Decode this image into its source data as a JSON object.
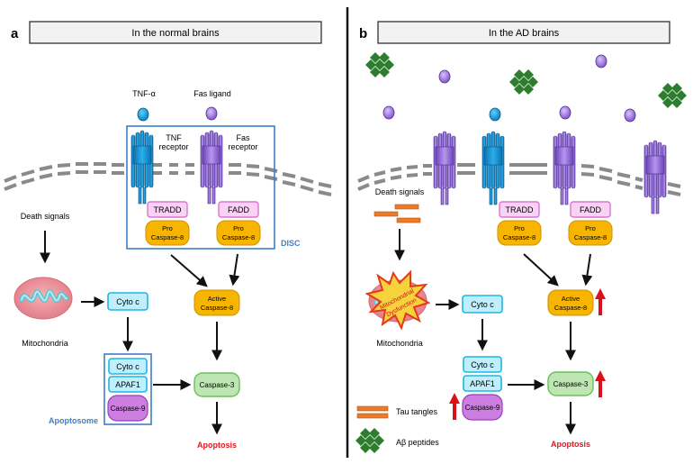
{
  "panel_a": {
    "letter": "a",
    "title": "In the normal brains",
    "tnf_alpha": "TNF-α",
    "fas_ligand": "Fas ligand",
    "tnf_receptor_1": "TNF",
    "tnf_receptor_2": "receptor",
    "fas_receptor_1": "Fas",
    "fas_receptor_2": "receptor",
    "tradd": "TRADD",
    "fadd": "FADD",
    "pro_caspase_1": "Pro",
    "pro_caspase_2": "Caspase-8",
    "disc": "DISC",
    "death_signals": "Death signals",
    "mitochondria": "Mitochondria",
    "cyto_c": "Cyto c",
    "apaf1": "APAF1",
    "caspase9": "Caspase-9",
    "apoptosome": "Apoptosome",
    "active_1": "Active",
    "active_2": "Caspase-8",
    "caspase3": "Caspase-3",
    "apoptosis": "Apoptosis"
  },
  "panel_b": {
    "letter": "b",
    "title": "In the AD brains",
    "death_signals": "Death signals",
    "tradd": "TRADD",
    "fadd": "FADD",
    "pro_caspase_1": "Pro",
    "pro_caspase_2": "Caspase-8",
    "mito_dys_1": "Mitochondrial",
    "mito_dys_2": "Dysfunction",
    "mitochondria": "Mitochondria",
    "cyto_c": "Cyto c",
    "apaf1": "APAF1",
    "caspase9": "Caspase-9",
    "active_1": "Active",
    "active_2": "Caspase-8",
    "caspase3": "Caspase-3",
    "apoptosis": "Apoptosis",
    "legend_tau": "Tau tangles",
    "legend_abeta": "Aβ peptides"
  },
  "colors": {
    "receptor_blue": "#1a9bd7",
    "receptor_purple": "#9a6fd6",
    "adaptor_pink": "#f4b8ee",
    "caspase8_orange": "#f7b500",
    "cyto_cyan": "#bfeffc",
    "caspase9_purple": "#cc7fe0",
    "caspase3_green": "#bde6b3",
    "apoptosis_red": "#e8141b",
    "disc_blue": "#3f7fc4",
    "abeta_green": "#2e7d2e",
    "tau_orange": "#ee7a26",
    "up_arrow_red": "#d9111a"
  }
}
